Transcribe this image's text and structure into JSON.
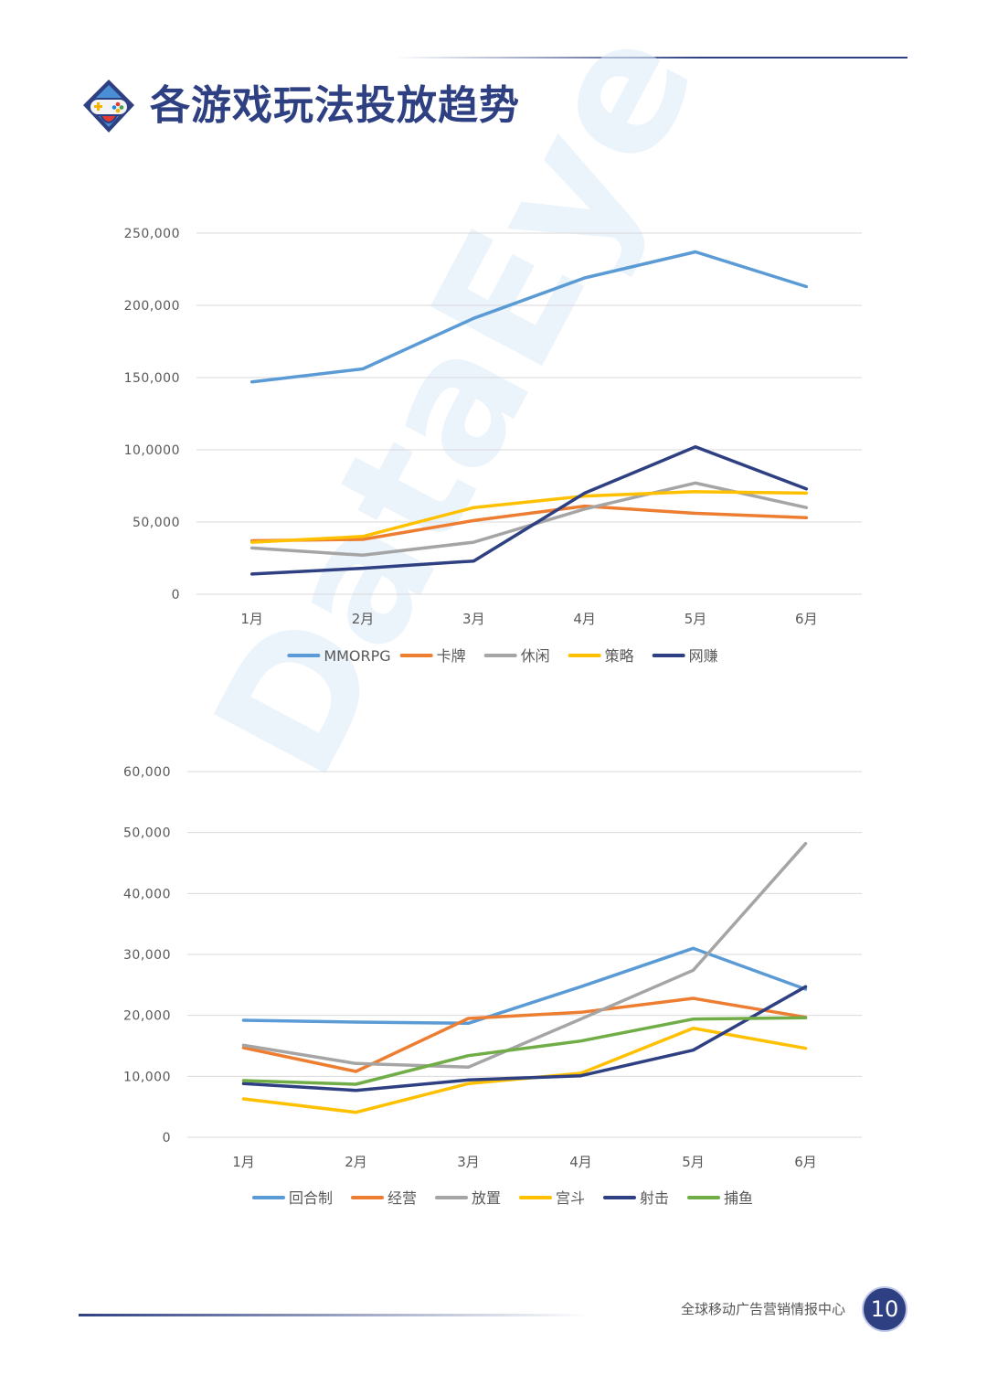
{
  "header": {
    "title": "各游戏玩法投放趋势"
  },
  "watermark": {
    "text": "DataEye"
  },
  "footer": {
    "report_name": "全球移动广告营销情报中心",
    "page_number": "10"
  },
  "colors": {
    "title": "#2e4082",
    "blue_light": "#5b9bd5",
    "orange": "#ed7d31",
    "gray": "#a5a5a5",
    "yellow": "#ffc000",
    "navy": "#2e4082",
    "green": "#70ad47",
    "grid": "#d9d9d9",
    "axis_text": "#595959"
  },
  "chart_data": [
    {
      "type": "line",
      "title": "",
      "xlabel": "",
      "ylabel": "",
      "categories": [
        "1月",
        "2月",
        "3月",
        "4月",
        "5月",
        "6月"
      ],
      "ylim": [
        0,
        250000
      ],
      "yticks": [
        0,
        50000,
        100000,
        150000,
        200000,
        250000
      ],
      "ytick_labels": [
        "0",
        "50,000",
        "10,0000",
        "150,000",
        "200,000",
        "250,000"
      ],
      "grid": true,
      "legend": "bottom",
      "series": [
        {
          "name": "MMORPG",
          "color": "#5b9bd5",
          "values": [
            147000,
            156000,
            191000,
            219000,
            237000,
            213000
          ]
        },
        {
          "name": "卡牌",
          "color": "#ed7d31",
          "values": [
            37000,
            38000,
            51000,
            61000,
            56000,
            53000
          ]
        },
        {
          "name": "休闲",
          "color": "#a5a5a5",
          "values": [
            32000,
            27000,
            36000,
            59000,
            77000,
            60000
          ]
        },
        {
          "name": "策略",
          "color": "#ffc000",
          "values": [
            36000,
            40000,
            60000,
            68000,
            71000,
            70000
          ]
        },
        {
          "name": "网赚",
          "color": "#2e4082",
          "values": [
            14000,
            18000,
            23000,
            70000,
            102000,
            73000
          ]
        }
      ]
    },
    {
      "type": "line",
      "title": "",
      "xlabel": "",
      "ylabel": "",
      "categories": [
        "1月",
        "2月",
        "3月",
        "4月",
        "5月",
        "6月"
      ],
      "ylim": [
        0,
        60000
      ],
      "yticks": [
        0,
        10000,
        20000,
        30000,
        40000,
        50000,
        60000
      ],
      "ytick_labels": [
        "0",
        "10,000",
        "20,000",
        "30,000",
        "40,000",
        "50,000",
        "60,000"
      ],
      "grid": true,
      "legend": "bottom",
      "series": [
        {
          "name": "回合制",
          "color": "#5b9bd5",
          "values": [
            19200,
            18900,
            18700,
            24700,
            31000,
            24300
          ]
        },
        {
          "name": "经营",
          "color": "#ed7d31",
          "values": [
            14700,
            10800,
            19500,
            20500,
            22800,
            19700
          ]
        },
        {
          "name": "放置",
          "color": "#a5a5a5",
          "values": [
            15100,
            12100,
            11500,
            19400,
            27400,
            48200
          ]
        },
        {
          "name": "宫斗",
          "color": "#ffc000",
          "values": [
            6300,
            4100,
            8800,
            10500,
            17900,
            14600
          ]
        },
        {
          "name": "射击",
          "color": "#2e4082",
          "values": [
            8800,
            7700,
            9400,
            10100,
            14300,
            24700
          ]
        },
        {
          "name": "捕鱼",
          "color": "#70ad47",
          "values": [
            9300,
            8700,
            13400,
            15800,
            19400,
            19600
          ]
        }
      ]
    }
  ]
}
